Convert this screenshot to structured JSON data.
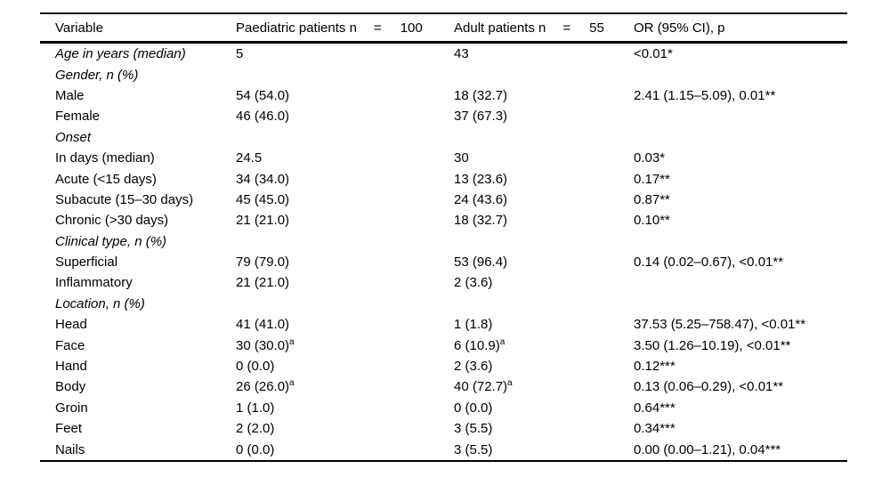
{
  "table": {
    "header": {
      "col1": "Variable",
      "col2": {
        "label": "Paediatric patients n",
        "eq": "=",
        "value": "100"
      },
      "col3": {
        "label": "Adult patients n",
        "eq": "=",
        "value": "55"
      },
      "col4": "OR (95% CI), p"
    },
    "rows": [
      {
        "variable": "Age in years (median)",
        "italic": true,
        "paediatric": "5",
        "adult": "43",
        "or": "<0.01*"
      },
      {
        "variable": "Gender, n (%)",
        "italic": true,
        "paediatric": "",
        "adult": "",
        "or": ""
      },
      {
        "variable": "Male",
        "italic": false,
        "paediatric": "54 (54.0)",
        "adult": "18 (32.7)",
        "or": "2.41 (1.15–5.09), 0.01**"
      },
      {
        "variable": "Female",
        "italic": false,
        "paediatric": "46 (46.0)",
        "adult": "37 (67.3)",
        "or": ""
      },
      {
        "variable": "Onset",
        "italic": true,
        "paediatric": "",
        "adult": "",
        "or": ""
      },
      {
        "variable": "In days (median)",
        "italic": false,
        "paediatric": "24.5",
        "adult": "30",
        "or": "0.03*"
      },
      {
        "variable": "Acute (<15 days)",
        "italic": false,
        "paediatric": "34 (34.0)",
        "adult": "13 (23.6)",
        "or": "0.17**"
      },
      {
        "variable": "Subacute (15–30 days)",
        "italic": false,
        "paediatric": "45 (45.0)",
        "adult": "24 (43.6)",
        "or": "0.87**"
      },
      {
        "variable": "Chronic (>30 days)",
        "italic": false,
        "paediatric": "21 (21.0)",
        "adult": "18 (32.7)",
        "or": "0.10**"
      },
      {
        "variable": "Clinical type, n (%)",
        "italic": true,
        "paediatric": "",
        "adult": "",
        "or": ""
      },
      {
        "variable": "Superficial",
        "italic": false,
        "paediatric": "79 (79.0)",
        "adult": "53 (96.4)",
        "or": "0.14 (0.02–0.67), <0.01**"
      },
      {
        "variable": "Inflammatory",
        "italic": false,
        "paediatric": "21 (21.0)",
        "adult": "2 (3.6)",
        "or": ""
      },
      {
        "variable": "Location, n (%)",
        "italic": true,
        "paediatric": "",
        "adult": "",
        "or": ""
      },
      {
        "variable": "Head",
        "italic": false,
        "paediatric": "41 (41.0)",
        "adult": "1 (1.8)",
        "or": "37.53 (5.25–758.47), <0.01**"
      },
      {
        "variable": "Face",
        "italic": false,
        "paediatric": "30 (30.0)",
        "paediatric_sup": "a",
        "adult": "6 (10.9)",
        "adult_sup": "a",
        "or": "3.50 (1.26–10.19), <0.01**"
      },
      {
        "variable": "Hand",
        "italic": false,
        "paediatric": "0 (0.0)",
        "adult": "2 (3.6)",
        "or": "0.12***"
      },
      {
        "variable": "Body",
        "italic": false,
        "paediatric": "26 (26.0)",
        "paediatric_sup": "a",
        "adult": "40 (72.7)",
        "adult_sup": "a",
        "or": "0.13 (0.06–0.29), <0.01**"
      },
      {
        "variable": "Groin",
        "italic": false,
        "paediatric": "1 (1.0)",
        "adult": "0 (0.0)",
        "or": "0.64***"
      },
      {
        "variable": "Feet",
        "italic": false,
        "paediatric": "2 (2.0)",
        "adult": "3 (5.5)",
        "or": "0.34***"
      },
      {
        "variable": "Nails",
        "italic": false,
        "paediatric": "0 (0.0)",
        "adult": "3 (5.5)",
        "or": "0.00 (0.00–1.21), 0.04***"
      }
    ]
  }
}
